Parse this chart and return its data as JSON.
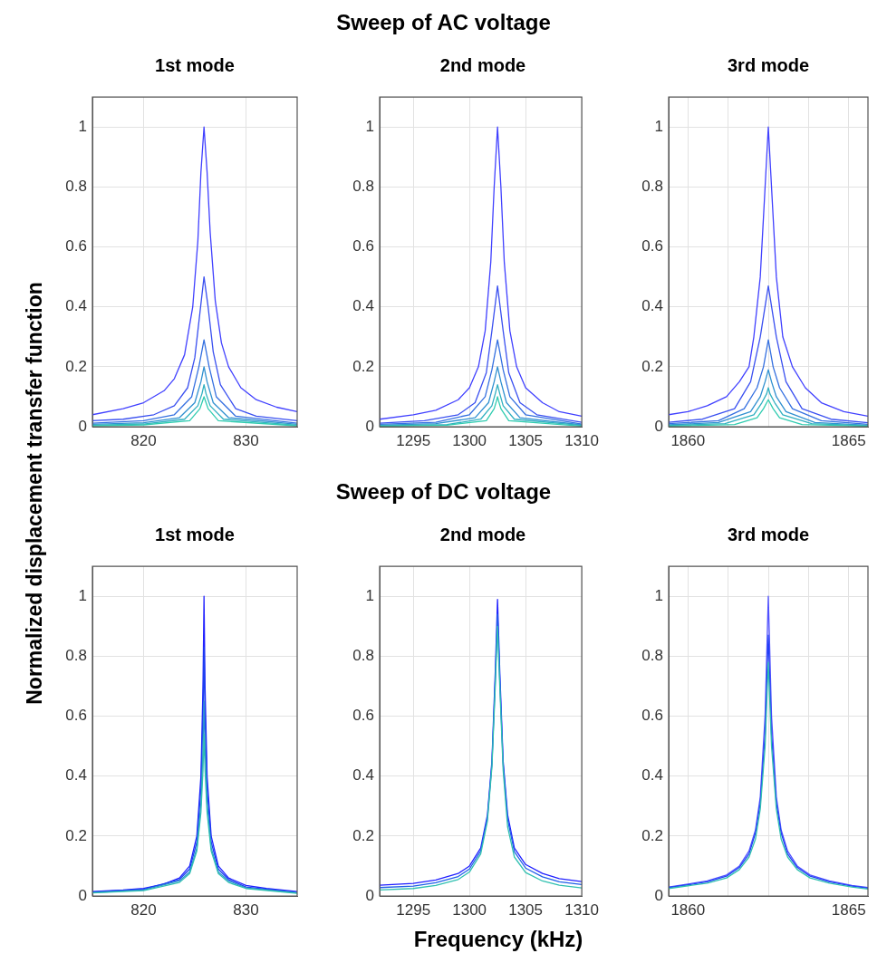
{
  "chart_data": [
    {
      "type": "line",
      "title": "1st mode",
      "ylabel": "Normalized displacement transfer function",
      "xlim": [
        815,
        835
      ],
      "xticks": [
        820,
        830
      ],
      "ylim": [
        0,
        1.1
      ],
      "yticks": [
        0,
        0.2,
        0.4,
        0.6,
        0.8,
        1
      ],
      "grid": true,
      "legend": false,
      "marker": "none",
      "series": [
        {
          "color": "#4040ff",
          "x": [
            815,
            818,
            820,
            822,
            823,
            824,
            824.8,
            825.3,
            825.6,
            825.9,
            826.2,
            826.5,
            827,
            827.6,
            828.3,
            829.5,
            831,
            833,
            835
          ],
          "values": [
            0.04,
            0.06,
            0.08,
            0.12,
            0.16,
            0.24,
            0.4,
            0.62,
            0.85,
            1.0,
            0.85,
            0.65,
            0.42,
            0.28,
            0.2,
            0.13,
            0.09,
            0.065,
            0.05
          ]
        },
        {
          "color": "#3a50f0",
          "x": [
            815,
            818,
            821,
            823,
            824.3,
            825,
            825.5,
            825.9,
            826.3,
            826.8,
            827.5,
            829,
            831,
            835
          ],
          "values": [
            0.02,
            0.025,
            0.04,
            0.07,
            0.13,
            0.23,
            0.38,
            0.5,
            0.4,
            0.25,
            0.14,
            0.06,
            0.035,
            0.02
          ]
        },
        {
          "color": "#3570e0",
          "x": [
            815,
            820,
            823,
            824.7,
            825.4,
            825.9,
            826.4,
            827.1,
            829,
            835
          ],
          "values": [
            0.012,
            0.02,
            0.04,
            0.1,
            0.2,
            0.29,
            0.2,
            0.1,
            0.035,
            0.012
          ]
        },
        {
          "color": "#3090d0",
          "x": [
            815,
            820,
            823.5,
            825,
            825.6,
            825.9,
            826.2,
            826.8,
            828.3,
            835
          ],
          "values": [
            0.008,
            0.013,
            0.03,
            0.08,
            0.15,
            0.2,
            0.15,
            0.08,
            0.03,
            0.008
          ]
        },
        {
          "color": "#30b0c0",
          "x": [
            815,
            820,
            824,
            825.3,
            825.7,
            825.9,
            826.1,
            826.5,
            827.8,
            835
          ],
          "values": [
            0.005,
            0.009,
            0.025,
            0.07,
            0.11,
            0.14,
            0.11,
            0.07,
            0.025,
            0.005
          ]
        },
        {
          "color": "#30ccb0",
          "x": [
            815,
            820,
            824.5,
            825.5,
            825.8,
            825.9,
            826,
            826.3,
            827.3,
            835
          ],
          "values": [
            0.003,
            0.006,
            0.02,
            0.06,
            0.09,
            0.1,
            0.09,
            0.06,
            0.02,
            0.003
          ]
        }
      ]
    },
    {
      "type": "line",
      "title": "2nd mode",
      "annotations": [
        "Sweep of AC voltage"
      ],
      "xlim": [
        1292,
        1310
      ],
      "xticks": [
        1295,
        1300,
        1305,
        1310
      ],
      "ylim": [
        0,
        1.1
      ],
      "yticks": [
        0,
        0.2,
        0.4,
        0.6,
        0.8,
        1
      ],
      "grid": true,
      "legend": false,
      "marker": "none",
      "series": [
        {
          "color": "#4040ff",
          "x": [
            1292,
            1295,
            1297,
            1299,
            1300,
            1300.8,
            1301.4,
            1301.9,
            1302.2,
            1302.5,
            1302.8,
            1303.1,
            1303.6,
            1304.2,
            1305,
            1306.5,
            1308,
            1310
          ],
          "values": [
            0.025,
            0.04,
            0.055,
            0.09,
            0.13,
            0.2,
            0.32,
            0.55,
            0.8,
            1.0,
            0.8,
            0.55,
            0.32,
            0.2,
            0.13,
            0.08,
            0.05,
            0.035
          ]
        },
        {
          "color": "#3a50f0",
          "x": [
            1292,
            1296,
            1299,
            1300.5,
            1301.5,
            1302,
            1302.5,
            1303,
            1303.5,
            1304.5,
            1306,
            1310
          ],
          "values": [
            0.012,
            0.02,
            0.04,
            0.08,
            0.18,
            0.32,
            0.47,
            0.32,
            0.18,
            0.08,
            0.04,
            0.015
          ]
        },
        {
          "color": "#3570e0",
          "x": [
            1292,
            1297,
            1300,
            1301.4,
            1302,
            1302.5,
            1303,
            1303.6,
            1305,
            1310
          ],
          "values": [
            0.008,
            0.015,
            0.04,
            0.1,
            0.19,
            0.29,
            0.19,
            0.1,
            0.04,
            0.009
          ]
        },
        {
          "color": "#3090d0",
          "x": [
            1292,
            1297,
            1300.5,
            1301.7,
            1302.2,
            1302.5,
            1302.8,
            1303.3,
            1304.5,
            1310
          ],
          "values": [
            0.005,
            0.01,
            0.03,
            0.08,
            0.15,
            0.2,
            0.15,
            0.08,
            0.03,
            0.006
          ]
        },
        {
          "color": "#30b0c0",
          "x": [
            1292,
            1298,
            1301,
            1302,
            1302.3,
            1302.5,
            1302.7,
            1303,
            1304,
            1310
          ],
          "values": [
            0.003,
            0.007,
            0.025,
            0.07,
            0.11,
            0.14,
            0.11,
            0.07,
            0.025,
            0.004
          ]
        },
        {
          "color": "#30ccb0",
          "x": [
            1292,
            1298,
            1301.5,
            1302.2,
            1302.4,
            1302.5,
            1302.6,
            1302.8,
            1303.5,
            1310
          ],
          "values": [
            0.002,
            0.005,
            0.02,
            0.06,
            0.085,
            0.1,
            0.085,
            0.06,
            0.02,
            0.002
          ]
        }
      ]
    },
    {
      "type": "line",
      "title": "3rd mode",
      "xlim": [
        1859.4,
        1865.6
      ],
      "xticks": [
        1860,
        {
          "value": 1861.25,
          "label": null
        },
        {
          "value": 1862.5,
          "label": null
        },
        {
          "value": 1863.75,
          "label": null
        },
        1865
      ],
      "ylim": [
        0,
        1.1
      ],
      "yticks": [
        0,
        0.2,
        0.4,
        0.6,
        0.8,
        1
      ],
      "grid": true,
      "legend": false,
      "marker": "none",
      "series": [
        {
          "color": "#4040ff",
          "x": [
            1859.4,
            1860,
            1860.6,
            1861.2,
            1861.6,
            1861.9,
            1862.05,
            1862.25,
            1862.4,
            1862.5,
            1862.6,
            1862.75,
            1862.95,
            1863.25,
            1863.65,
            1864.15,
            1864.85,
            1865.6
          ],
          "values": [
            0.04,
            0.05,
            0.07,
            0.1,
            0.15,
            0.2,
            0.3,
            0.5,
            0.8,
            1.0,
            0.8,
            0.5,
            0.3,
            0.2,
            0.13,
            0.08,
            0.05,
            0.035
          ]
        },
        {
          "color": "#3a50f0",
          "x": [
            1859.4,
            1860.45,
            1861.45,
            1861.95,
            1862.25,
            1862.5,
            1862.75,
            1863.05,
            1863.55,
            1864.45,
            1865.6
          ],
          "values": [
            0.015,
            0.025,
            0.06,
            0.15,
            0.3,
            0.47,
            0.3,
            0.15,
            0.06,
            0.025,
            0.013
          ]
        },
        {
          "color": "#3570e0",
          "x": [
            1859.4,
            1860.95,
            1861.75,
            1862.15,
            1862.35,
            1862.5,
            1862.65,
            1862.85,
            1863.25,
            1864.15,
            1865.6
          ],
          "values": [
            0.01,
            0.02,
            0.06,
            0.13,
            0.2,
            0.29,
            0.2,
            0.13,
            0.06,
            0.02,
            0.008
          ]
        },
        {
          "color": "#3090d0",
          "x": [
            1859.4,
            1860.95,
            1861.95,
            1862.25,
            1862.4,
            1862.5,
            1862.6,
            1862.75,
            1863.05,
            1863.95,
            1865.6
          ],
          "values": [
            0.006,
            0.014,
            0.05,
            0.1,
            0.15,
            0.19,
            0.15,
            0.1,
            0.05,
            0.014,
            0.005
          ]
        },
        {
          "color": "#30b0c0",
          "x": [
            1859.4,
            1861.15,
            1862.05,
            1862.3,
            1862.45,
            1862.5,
            1862.55,
            1862.7,
            1862.95,
            1863.85,
            1865.6
          ],
          "values": [
            0.004,
            0.01,
            0.04,
            0.08,
            0.11,
            0.13,
            0.11,
            0.08,
            0.04,
            0.01,
            0.003
          ]
        },
        {
          "color": "#30ccb0",
          "x": [
            1859.4,
            1861.45,
            1862.15,
            1862.35,
            1862.45,
            1862.5,
            1862.55,
            1862.65,
            1862.85,
            1863.55,
            1865.6
          ],
          "values": [
            0.002,
            0.007,
            0.03,
            0.06,
            0.08,
            0.09,
            0.08,
            0.06,
            0.03,
            0.007,
            0.002
          ]
        }
      ]
    },
    {
      "type": "line",
      "title": "1st mode",
      "xlim": [
        815,
        835
      ],
      "xticks": [
        820,
        830
      ],
      "ylim": [
        0,
        1.1
      ],
      "yticks": [
        0,
        0.2,
        0.4,
        0.6,
        0.8,
        1
      ],
      "grid": true,
      "legend": false,
      "marker": "none",
      "series": [
        {
          "color": "#2020ff",
          "x": [
            815,
            818,
            820,
            822,
            823.5,
            824.5,
            825.2,
            825.6,
            825.8,
            825.9,
            826,
            826.2,
            826.6,
            827.3,
            828.3,
            830,
            832,
            835
          ],
          "values": [
            0.015,
            0.02,
            0.025,
            0.04,
            0.06,
            0.1,
            0.2,
            0.4,
            0.7,
            1.0,
            0.7,
            0.4,
            0.2,
            0.1,
            0.06,
            0.035,
            0.025,
            0.015
          ]
        },
        {
          "color": "#1a40f0",
          "x": [
            815,
            820,
            823.5,
            824.5,
            825.2,
            825.6,
            825.8,
            825.9,
            826,
            826.2,
            826.6,
            827.3,
            828.3,
            830,
            835
          ],
          "values": [
            0.013,
            0.022,
            0.055,
            0.09,
            0.18,
            0.36,
            0.6,
            0.83,
            0.6,
            0.36,
            0.18,
            0.09,
            0.055,
            0.03,
            0.012
          ]
        },
        {
          "color": "#2a90d0",
          "x": [
            815,
            820,
            823.5,
            824.5,
            825.2,
            825.6,
            825.8,
            825.9,
            826,
            826.2,
            826.6,
            827.3,
            828.3,
            830,
            835
          ],
          "values": [
            0.011,
            0.02,
            0.05,
            0.08,
            0.16,
            0.31,
            0.49,
            0.65,
            0.49,
            0.31,
            0.16,
            0.08,
            0.05,
            0.027,
            0.01
          ]
        },
        {
          "color": "#30c0b0",
          "x": [
            815,
            820,
            823.5,
            824.5,
            825.2,
            825.6,
            825.8,
            825.9,
            826,
            826.2,
            826.6,
            827.3,
            828.3,
            830,
            835
          ],
          "values": [
            0.01,
            0.018,
            0.045,
            0.075,
            0.15,
            0.28,
            0.42,
            0.54,
            0.42,
            0.28,
            0.15,
            0.075,
            0.045,
            0.025,
            0.009
          ]
        }
      ]
    },
    {
      "type": "line",
      "title": "2nd mode",
      "annotations": [
        "Sweep of DC voltage"
      ],
      "xlabel": "Frequency (kHz)",
      "xlim": [
        1292,
        1310
      ],
      "xticks": [
        1295,
        1300,
        1305,
        1310
      ],
      "ylim": [
        0,
        1.1
      ],
      "yticks": [
        0,
        0.2,
        0.4,
        0.6,
        0.8,
        1
      ],
      "grid": true,
      "legend": false,
      "marker": "none",
      "series": [
        {
          "color": "#2020ff",
          "x": [
            1292,
            1295,
            1297,
            1299,
            1300,
            1301,
            1301.6,
            1302,
            1302.3,
            1302.5,
            1302.7,
            1303,
            1303.4,
            1304,
            1305,
            1306.5,
            1308,
            1310
          ],
          "values": [
            0.036,
            0.042,
            0.053,
            0.075,
            0.1,
            0.16,
            0.27,
            0.45,
            0.75,
            0.99,
            0.75,
            0.45,
            0.27,
            0.16,
            0.105,
            0.075,
            0.058,
            0.048
          ]
        },
        {
          "color": "#2060e8",
          "x": [
            1292,
            1295,
            1297,
            1299,
            1300,
            1301,
            1301.6,
            1302,
            1302.3,
            1302.5,
            1302.7,
            1303,
            1303.4,
            1304,
            1305,
            1306.5,
            1308,
            1310
          ],
          "values": [
            0.028,
            0.033,
            0.044,
            0.065,
            0.09,
            0.15,
            0.26,
            0.44,
            0.72,
            0.94,
            0.72,
            0.44,
            0.255,
            0.148,
            0.093,
            0.064,
            0.047,
            0.038
          ]
        },
        {
          "color": "#30c0b0",
          "x": [
            1292,
            1295,
            1297,
            1299,
            1300,
            1301,
            1301.6,
            1302,
            1302.3,
            1302.5,
            1302.7,
            1303,
            1303.4,
            1304,
            1305,
            1306.5,
            1308,
            1310
          ],
          "values": [
            0.02,
            0.025,
            0.035,
            0.055,
            0.08,
            0.14,
            0.25,
            0.43,
            0.7,
            0.9,
            0.7,
            0.42,
            0.23,
            0.13,
            0.078,
            0.05,
            0.036,
            0.027
          ]
        }
      ]
    },
    {
      "type": "line",
      "title": "3rd mode",
      "xlim": [
        1859.4,
        1865.6
      ],
      "xticks": [
        1860,
        {
          "value": 1861.25,
          "label": null
        },
        {
          "value": 1862.5,
          "label": null
        },
        {
          "value": 1863.75,
          "label": null
        },
        1865
      ],
      "ylim": [
        0,
        1.1
      ],
      "yticks": [
        0,
        0.2,
        0.4,
        0.6,
        0.8,
        1
      ],
      "grid": true,
      "legend": false,
      "marker": "none",
      "series": [
        {
          "color": "#5050ff",
          "x": [
            1859.4,
            1860,
            1860.6,
            1861.2,
            1861.6,
            1861.9,
            1862.1,
            1862.25,
            1862.4,
            1862.5,
            1862.6,
            1862.75,
            1862.9,
            1863.1,
            1863.4,
            1863.8,
            1864.4,
            1865.1,
            1865.6
          ],
          "values": [
            0.03,
            0.04,
            0.05,
            0.07,
            0.1,
            0.15,
            0.22,
            0.33,
            0.6,
            1.0,
            0.6,
            0.33,
            0.22,
            0.15,
            0.1,
            0.07,
            0.05,
            0.035,
            0.028
          ]
        },
        {
          "color": "#2040f5",
          "x": [
            1859.4,
            1860,
            1860.6,
            1861.2,
            1861.6,
            1861.9,
            1862.1,
            1862.25,
            1862.4,
            1862.5,
            1862.6,
            1862.75,
            1862.9,
            1863.1,
            1863.4,
            1863.8,
            1864.4,
            1865.1,
            1865.6
          ],
          "values": [
            0.028,
            0.037,
            0.047,
            0.066,
            0.095,
            0.14,
            0.21,
            0.31,
            0.54,
            0.87,
            0.54,
            0.31,
            0.21,
            0.14,
            0.095,
            0.066,
            0.047,
            0.033,
            0.026
          ]
        },
        {
          "color": "#30c0b0",
          "x": [
            1859.4,
            1860,
            1860.6,
            1861.2,
            1861.6,
            1861.9,
            1862.1,
            1862.25,
            1862.4,
            1862.5,
            1862.6,
            1862.75,
            1862.9,
            1863.1,
            1863.4,
            1863.8,
            1864.4,
            1865.1,
            1865.6
          ],
          "values": [
            0.025,
            0.034,
            0.043,
            0.06,
            0.088,
            0.13,
            0.19,
            0.29,
            0.5,
            0.78,
            0.5,
            0.29,
            0.19,
            0.13,
            0.088,
            0.06,
            0.043,
            0.03,
            0.023
          ]
        }
      ]
    }
  ]
}
